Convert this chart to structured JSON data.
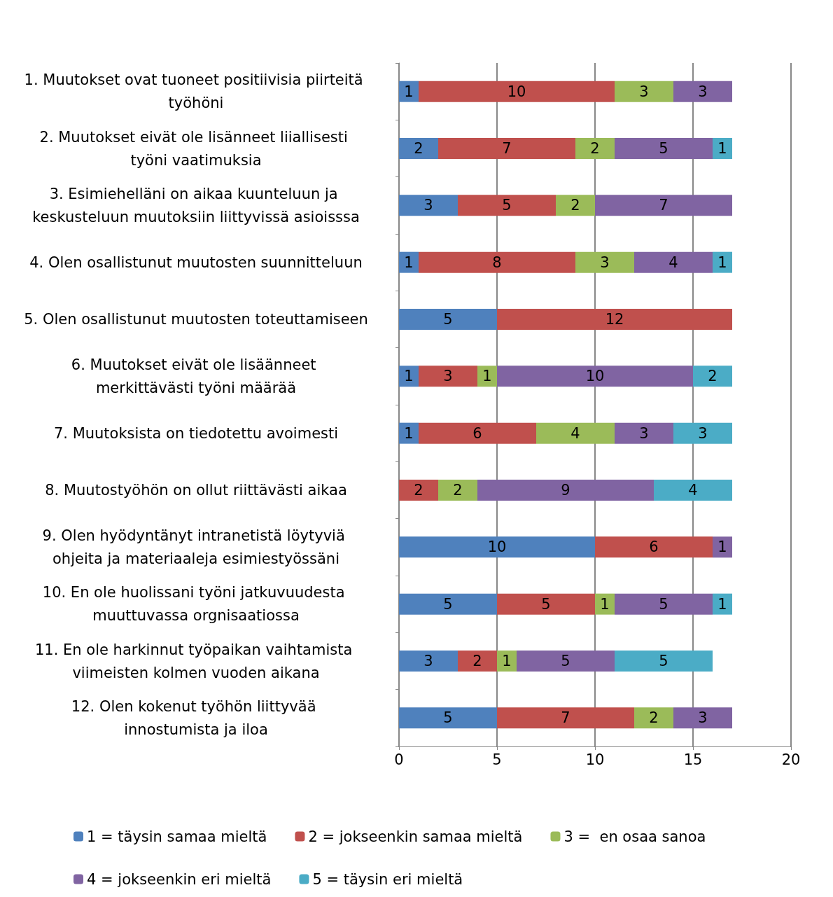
{
  "chart_data": {
    "type": "bar",
    "orientation": "horizontal",
    "stacked": true,
    "data_labels": true,
    "grid": "x",
    "legend": "bottom",
    "categories": [
      "1. Muutokset ovat tuoneet positiivisia piirteitä työhöni",
      "2. Muutokset eivät ole lisänneet liiallisesti työni vaatimuksia",
      "3. Esimiehelläni on aikaa kuunteluun ja keskusteluun muutoksiin liittyvissä asioisssa",
      "4. Olen osallistunut muutosten suunnitteluun",
      "5. Olen osallistunut muutosten toteuttamiseen",
      "6. Muutokset eivät ole lisäänneet merkittävästi työni määrää",
      "7. Muutoksista on tiedotettu avoimesti",
      "8. Muutostyöhön on ollut riittävästi aikaa",
      "9. Olen hyödyntänyt intranetistä löytyviä ohjeita ja materiaaleja esimiestyössäni",
      "10. En ole huolissani työni jatkuvuudesta muuttuvassa orgnisaatiossa",
      "11. En ole harkinnut työpaikan vaihtamista viimeisten kolmen vuoden aikana",
      "12. Olen kokenut työhön liittyvää innostumista ja iloa"
    ],
    "xlim": [
      0,
      20
    ],
    "xticks": [
      0,
      5,
      10,
      15,
      20
    ],
    "series": [
      {
        "name": "1 = täysin samaa mieltä",
        "color": "#4f81bd",
        "values": [
          1,
          2,
          3,
          1,
          5,
          1,
          1,
          null,
          10,
          5,
          3,
          5
        ]
      },
      {
        "name": "2 = jokseenkin samaa mieltä",
        "color": "#c0504d",
        "values": [
          10,
          7,
          5,
          8,
          12,
          3,
          6,
          2,
          6,
          5,
          2,
          7
        ]
      },
      {
        "name": "3 =  en osaa sanoa",
        "color": "#9bbb59",
        "values": [
          3,
          2,
          2,
          3,
          null,
          1,
          4,
          2,
          null,
          1,
          1,
          2
        ]
      },
      {
        "name": "4 = jokseenkin eri mieltä",
        "color": "#8064a2",
        "values": [
          3,
          5,
          7,
          4,
          null,
          10,
          3,
          9,
          1,
          5,
          5,
          3
        ]
      },
      {
        "name": "5 = täysin eri mieltä",
        "color": "#4bacc6",
        "values": [
          null,
          1,
          null,
          1,
          null,
          2,
          3,
          4,
          null,
          1,
          5,
          null
        ]
      }
    ]
  }
}
